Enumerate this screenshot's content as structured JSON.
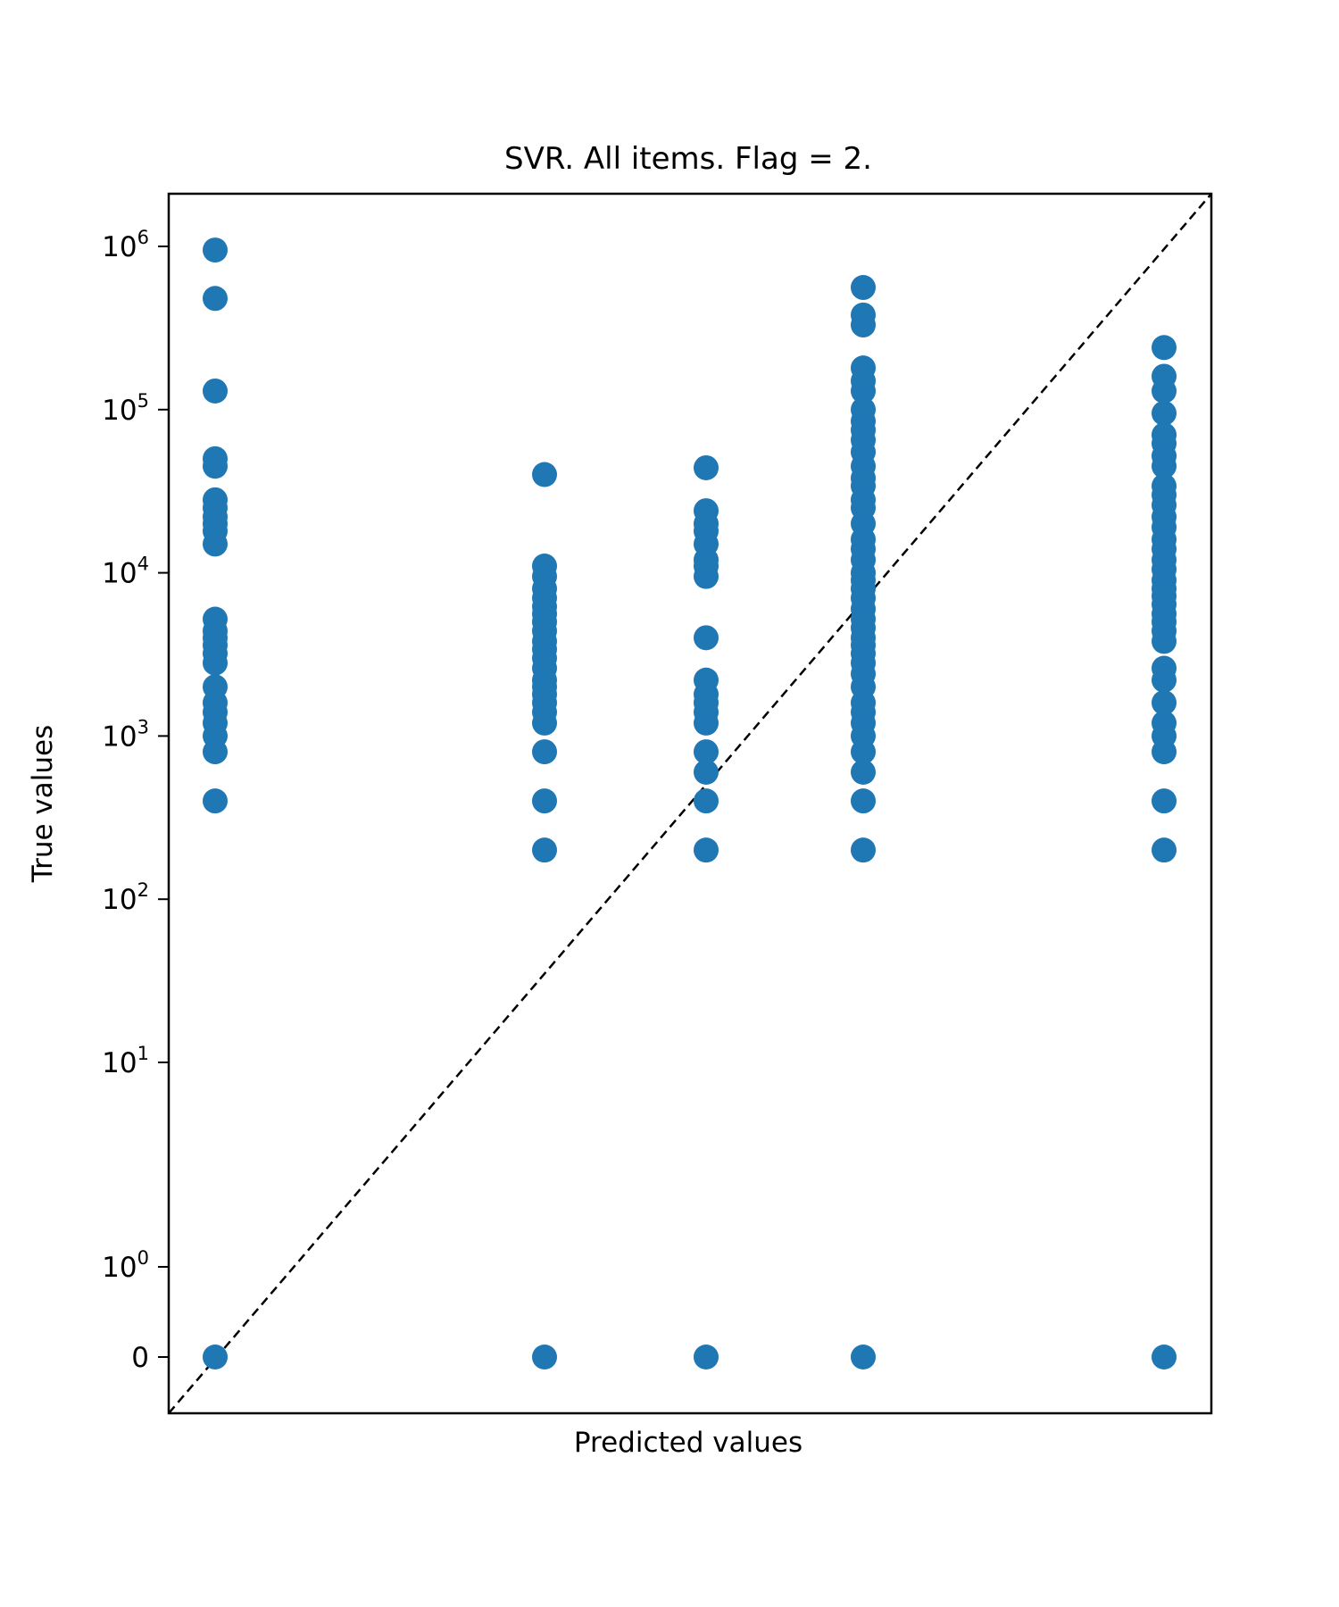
{
  "chart_data": {
    "type": "scatter",
    "title": "SVR. All items. Flag = 2.",
    "xlabel": "Predicted values",
    "ylabel": "True values",
    "y_scale": "symlog",
    "y_ticks": [
      {
        "value": 0,
        "base": "0",
        "exp": ""
      },
      {
        "value": 1,
        "base": "10",
        "exp": "0"
      },
      {
        "value": 10,
        "base": "10",
        "exp": "1"
      },
      {
        "value": 100,
        "base": "10",
        "exp": "2"
      },
      {
        "value": 1000,
        "base": "10",
        "exp": "3"
      },
      {
        "value": 10000,
        "base": "10",
        "exp": "4"
      },
      {
        "value": 100000,
        "base": "10",
        "exp": "5"
      },
      {
        "value": 1000000,
        "base": "10",
        "exp": "6"
      }
    ],
    "x_ticks_shown": false,
    "reference_line": "y = x (dashed, black)",
    "marker_color": "#1f77b4",
    "series": [
      {
        "points_by_predicted_group": [
          {
            "group": 1,
            "y": [
              0,
              400,
              800,
              1000,
              1200,
              1400,
              1600,
              2000,
              2800,
              3200,
              3600,
              4000,
              4400,
              5200,
              15000,
              18000,
              20000,
              22000,
              25000,
              28000,
              45000,
              50000,
              130000,
              480000,
              950000
            ]
          },
          {
            "group": 2,
            "y": [
              0,
              200,
              400,
              800,
              1200,
              1400,
              1600,
              1800,
              2000,
              2200,
              2600,
              3000,
              3400,
              3800,
              4400,
              5000,
              5600,
              6200,
              7000,
              8000,
              9500,
              11000,
              40000
            ]
          },
          {
            "group": 3,
            "y": [
              0,
              200,
              400,
              600,
              800,
              1200,
              1400,
              1600,
              1800,
              2200,
              4000,
              9500,
              11000,
              12000,
              15000,
              18000,
              20000,
              24000,
              44000
            ]
          },
          {
            "group": 4,
            "y": [
              0,
              200,
              400,
              600,
              800,
              1000,
              1200,
              1400,
              1600,
              2000,
              2400,
              2800,
              3200,
              3600,
              4000,
              4600,
              5200,
              6000,
              7000,
              8000,
              9000,
              10000,
              12000,
              14000,
              16000,
              20000,
              25000,
              28000,
              34000,
              38000,
              45000,
              55000,
              65000,
              75000,
              85000,
              100000,
              130000,
              150000,
              180000,
              330000,
              380000,
              560000
            ]
          },
          {
            "group": 5,
            "y": [
              0,
              200,
              400,
              800,
              1000,
              1200,
              1600,
              2200,
              2600,
              3800,
              4400,
              5000,
              5600,
              6400,
              7200,
              8000,
              9000,
              10500,
              12000,
              14000,
              16000,
              19000,
              22000,
              26000,
              30000,
              34000,
              45000,
              52000,
              62000,
              70000,
              95000,
              130000,
              160000,
              240000
            ]
          }
        ]
      }
    ]
  }
}
